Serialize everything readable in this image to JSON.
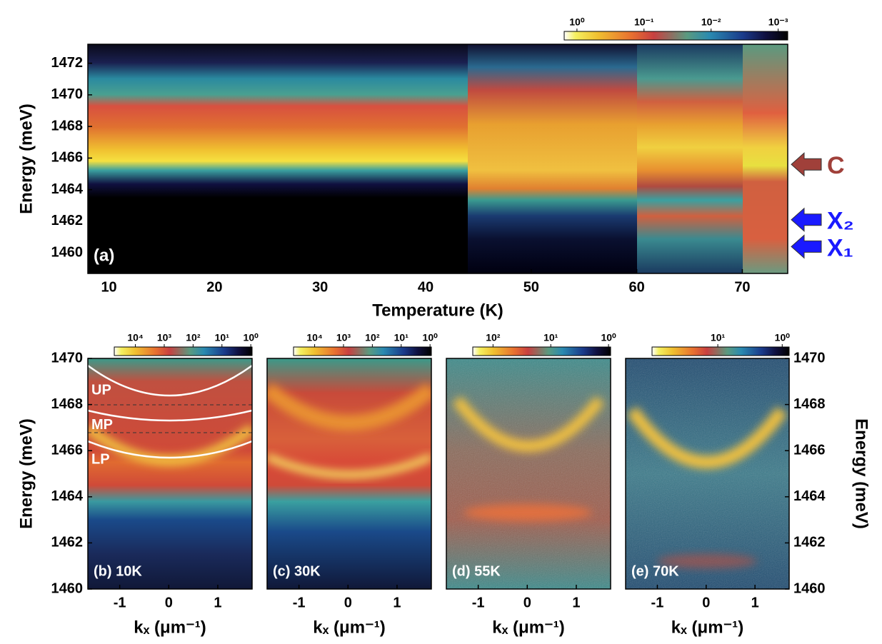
{
  "chart_data": [
    {
      "type": "heatmap",
      "label": "(a)",
      "x_label": "Temperature (K)",
      "y_label": "Energy (meV)",
      "y_axis": "left",
      "xlim": [
        8,
        74.3
      ],
      "xticks": [
        10,
        20,
        30,
        40,
        50,
        60,
        70
      ],
      "ylim": [
        1458.7,
        1473.2
      ],
      "yticks": [
        1460,
        1462,
        1464,
        1466,
        1468,
        1470,
        1472
      ],
      "colorbar": {
        "log": true,
        "lim": [
          1.55,
          0.00072
        ],
        "ticks": [
          {
            "value": 1,
            "label": "10⁰"
          },
          {
            "value": 0.1,
            "label": "10⁻¹"
          },
          {
            "value": 0.01,
            "label": "10⁻²"
          },
          {
            "value": 0.001,
            "label": "10⁻³"
          }
        ]
      },
      "annotations": [
        {
          "text": "C",
          "energy": 1465.6,
          "color": "#a0403a",
          "arrow": true
        },
        {
          "text": "X₂",
          "energy": 1462.1,
          "color": "#1a1aff",
          "arrow": true
        },
        {
          "text": "X₁",
          "energy": 1460.4,
          "color": "#1a1aff",
          "arrow": true
        }
      ]
    },
    {
      "type": "heatmap",
      "label": "(b) 10K",
      "x_label": "kₓ (μm⁻¹)",
      "y_label": "Energy (meV)",
      "y_axis": "left",
      "xlim": [
        -1.65,
        1.7
      ],
      "xticks": [
        -1,
        0,
        1
      ],
      "ylim": [
        1460,
        1470
      ],
      "yticks": [
        1460,
        1462,
        1464,
        1466,
        1468,
        1470
      ],
      "colorbar": {
        "log": true,
        "lim": [
          54000,
          0.9
        ],
        "ticks": [
          {
            "value": 10000,
            "label": "10⁴"
          },
          {
            "value": 1000,
            "label": "10³"
          },
          {
            "value": 100,
            "label": "10²"
          },
          {
            "value": 10,
            "label": "10¹"
          },
          {
            "value": 1,
            "label": "10⁰"
          }
        ]
      },
      "annotations": [
        {
          "text": "UP",
          "energy": 1468.6,
          "color": "#ffffff",
          "arrow": false
        },
        {
          "text": "MP",
          "energy": 1467.1,
          "color": "#ffffff",
          "arrow": false
        },
        {
          "text": "LP",
          "energy": 1465.6,
          "color": "#ffffff",
          "arrow": false
        }
      ]
    },
    {
      "type": "heatmap",
      "label": "(c) 30K",
      "x_label": "kₓ (μm⁻¹)",
      "xlim": [
        -1.65,
        1.7
      ],
      "xticks": [
        -1,
        0,
        1
      ],
      "ylim": [
        1460,
        1470
      ],
      "colorbar": {
        "log": true,
        "lim": [
          54000,
          0.9
        ],
        "ticks": [
          {
            "value": 10000,
            "label": "10⁴"
          },
          {
            "value": 1000,
            "label": "10³"
          },
          {
            "value": 100,
            "label": "10²"
          },
          {
            "value": 10,
            "label": "10¹"
          },
          {
            "value": 1,
            "label": "10⁰"
          }
        ]
      }
    },
    {
      "type": "heatmap",
      "label": "(d) 55K",
      "x_label": "kₓ (μm⁻¹)",
      "xlim": [
        -1.65,
        1.7
      ],
      "xticks": [
        -1,
        0,
        1
      ],
      "ylim": [
        1460,
        1470
      ],
      "colorbar": {
        "log": true,
        "lim": [
          224,
          0.92
        ],
        "ticks": [
          {
            "value": 100,
            "label": "10²"
          },
          {
            "value": 10,
            "label": "10¹"
          },
          {
            "value": 1,
            "label": "10⁰"
          }
        ]
      }
    },
    {
      "type": "heatmap",
      "label": "(e) 70K",
      "x_label": "kₓ (μm⁻¹)",
      "y_label": "Energy (meV)",
      "y_axis": "right",
      "xlim": [
        -1.65,
        1.7
      ],
      "xticks": [
        -1,
        0,
        1
      ],
      "ylim": [
        1460,
        1470
      ],
      "yticks": [
        1460,
        1462,
        1464,
        1466,
        1468,
        1470
      ],
      "colorbar": {
        "log": true,
        "lim": [
          105,
          0.78
        ],
        "ticks": [
          {
            "value": 10,
            "label": "10¹"
          },
          {
            "value": 1,
            "label": "10⁰"
          }
        ]
      }
    }
  ]
}
